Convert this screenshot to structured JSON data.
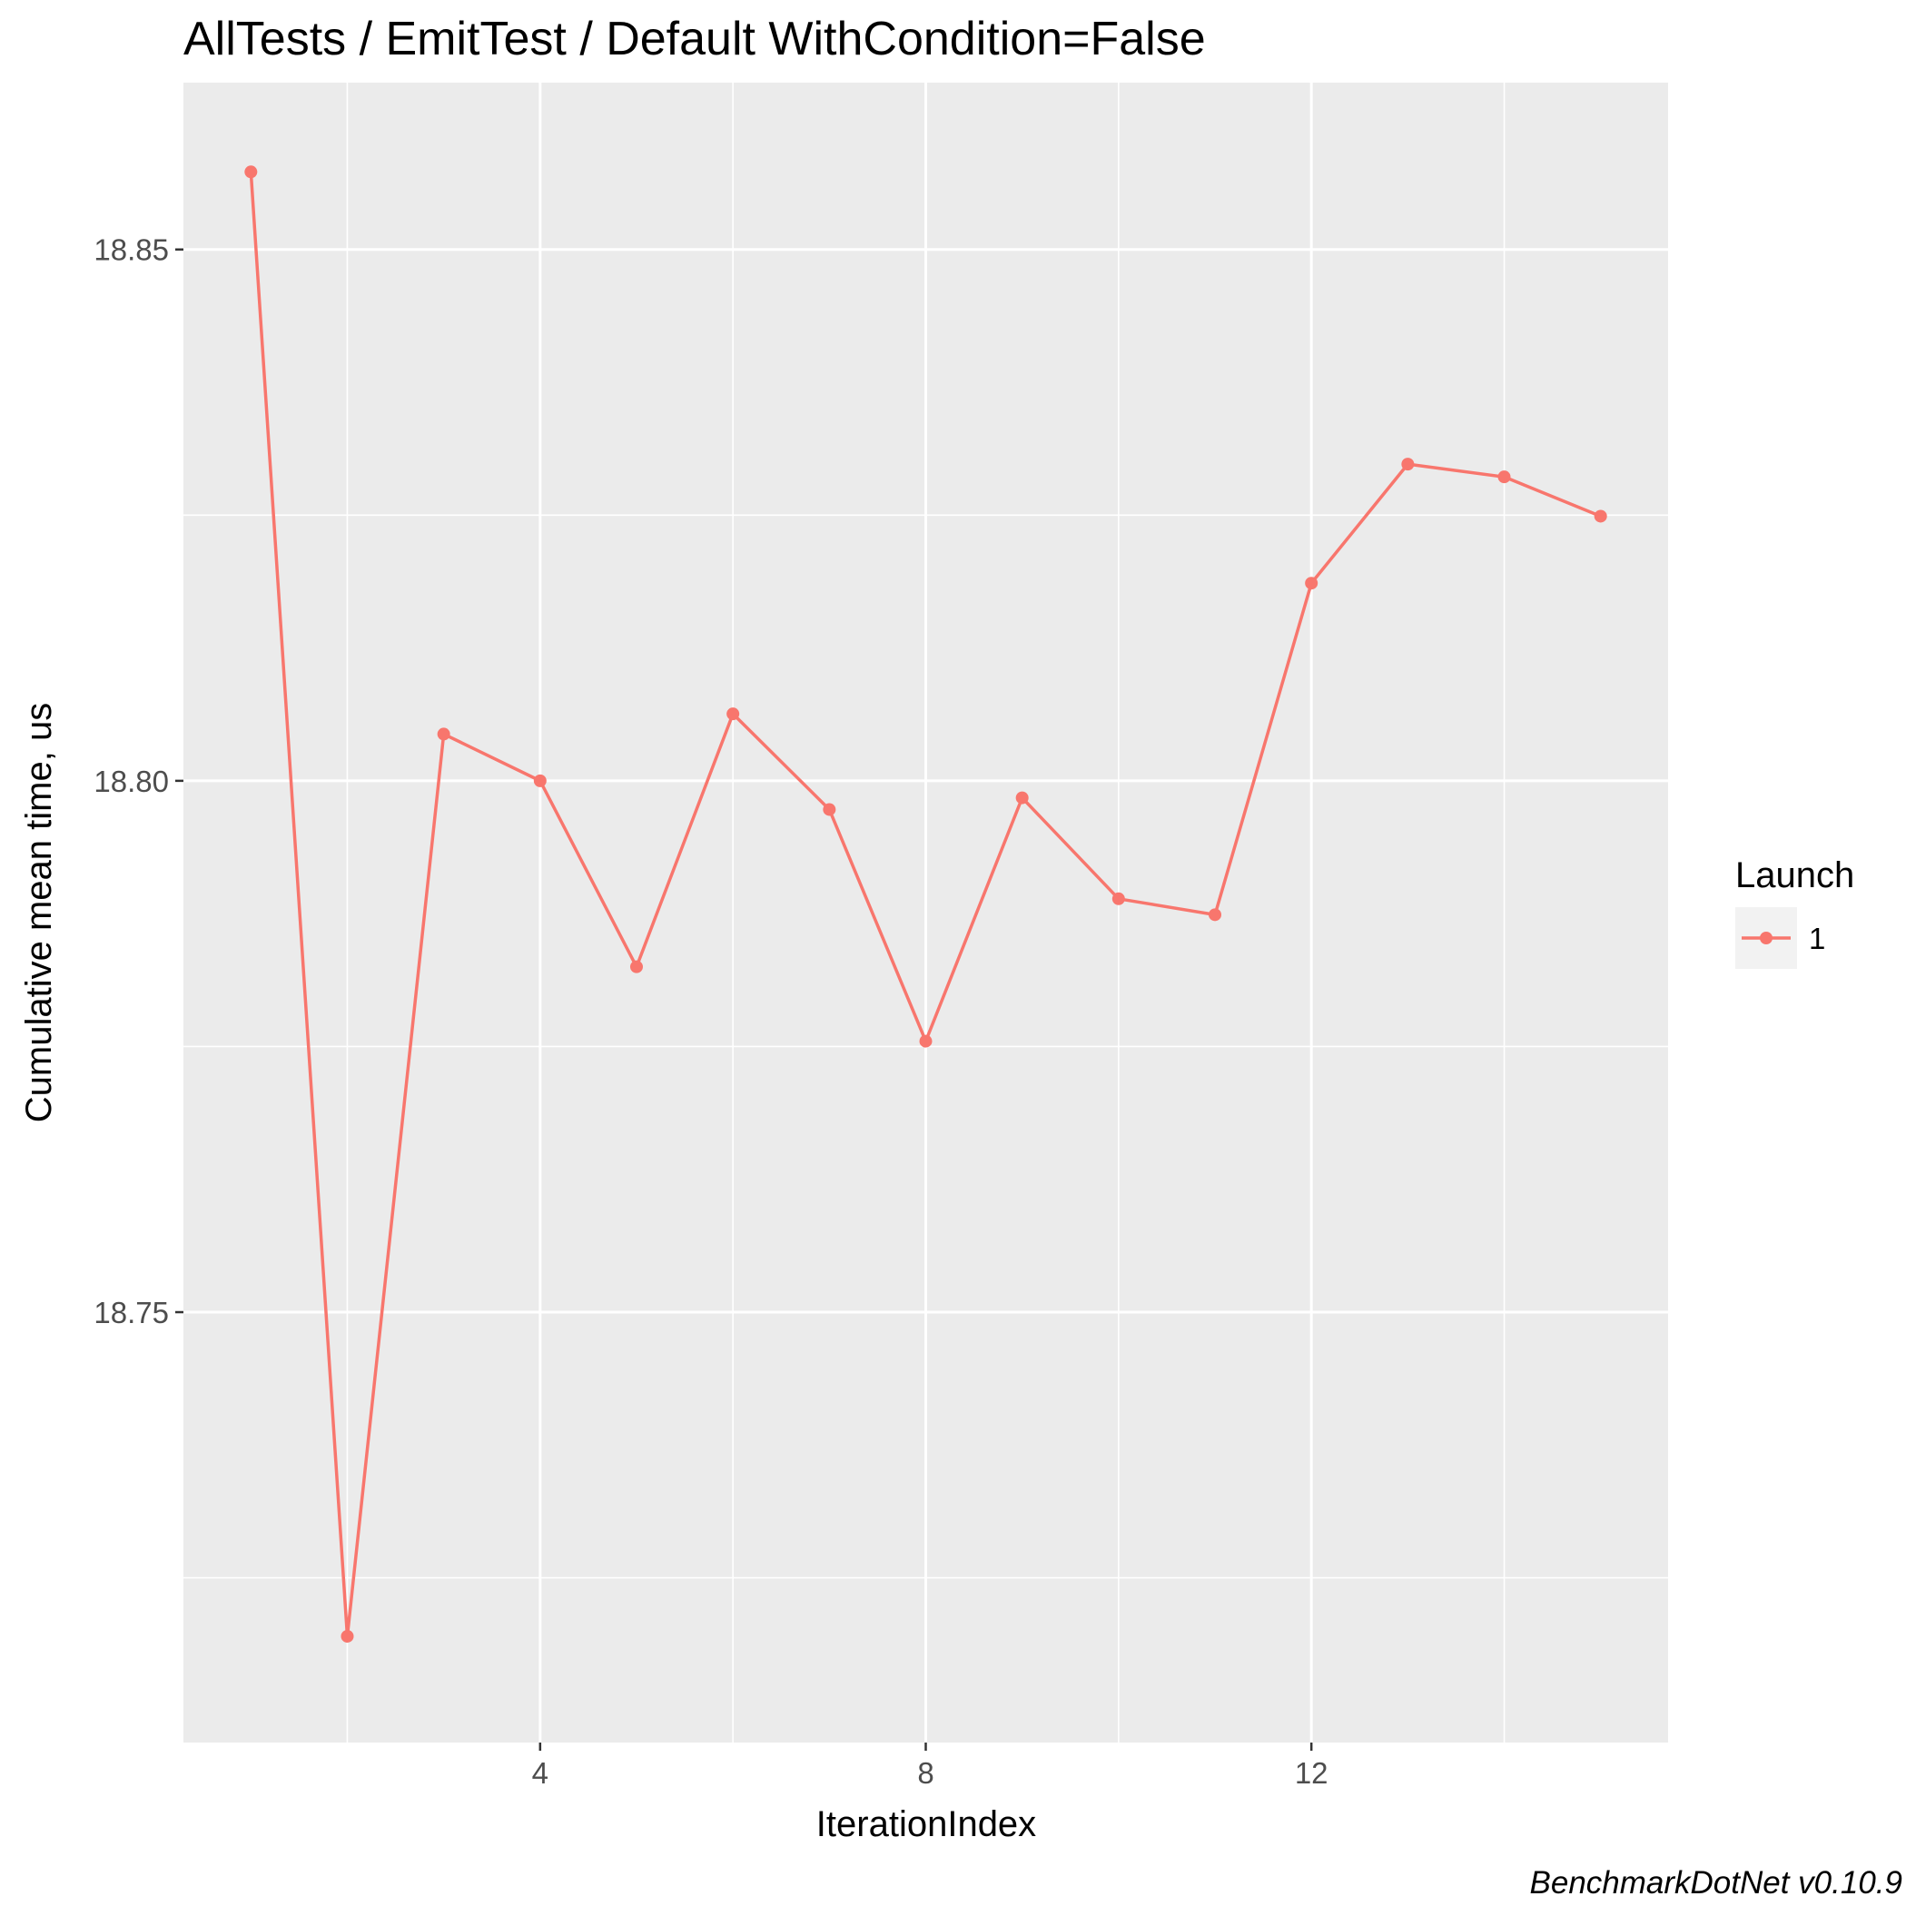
{
  "chart_data": {
    "type": "line",
    "title": "AllTests / EmitTest / Default WithCondition=False",
    "xlabel": "IterationIndex",
    "ylabel": "Cumulative mean time, us",
    "x": [
      1,
      2,
      3,
      4,
      5,
      6,
      7,
      8,
      9,
      10,
      11,
      12,
      13,
      14,
      15
    ],
    "series": [
      {
        "name": "1",
        "color": "#f8766d",
        "values": [
          18.8573,
          18.7195,
          18.8044,
          18.8,
          18.7825,
          18.8063,
          18.7973,
          18.7755,
          18.7984,
          18.7889,
          18.7874,
          18.8186,
          18.8298,
          18.8286,
          18.8249
        ]
      }
    ],
    "xticks": [
      4,
      8,
      12
    ],
    "xtick_labels": [
      "4",
      "8",
      "12"
    ],
    "yticks": [
      18.75,
      18.8,
      18.85
    ],
    "ytick_labels": [
      "18.75",
      "18.80",
      "18.85"
    ],
    "xlim": [
      0.3,
      15.7
    ],
    "ylim": [
      18.7095,
      18.8657
    ],
    "grid": true,
    "legend": {
      "title": "Launch",
      "position": "right"
    },
    "caption": "BenchmarkDotNet v0.10.9"
  }
}
